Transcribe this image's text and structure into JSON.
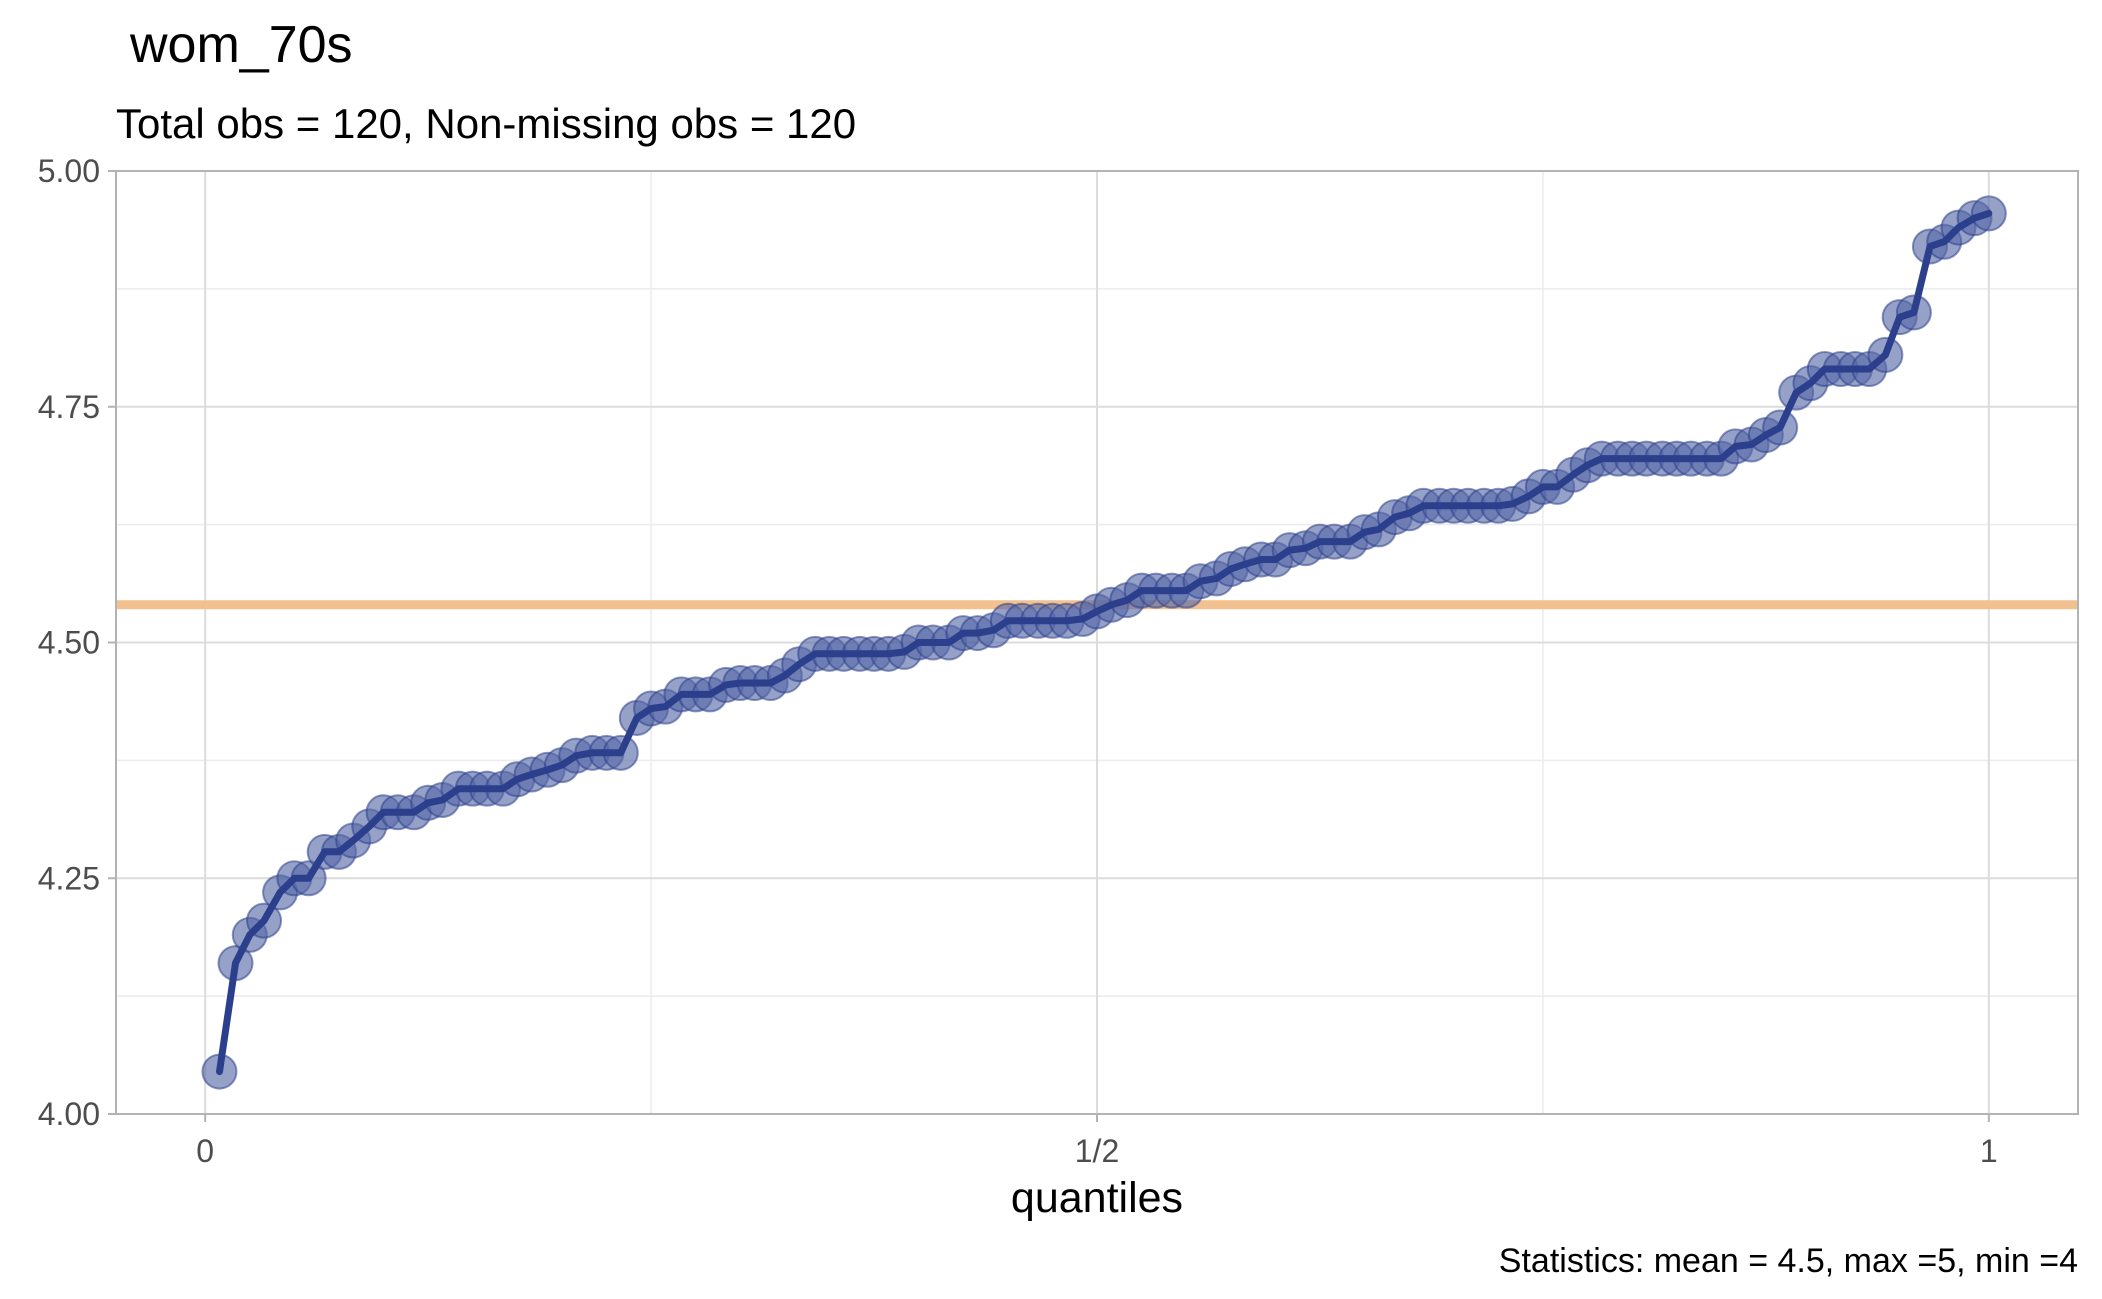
{
  "chart_data": {
    "type": "line",
    "title": "wom_70s",
    "subtitle": "Total obs = 120,  Non-missing obs = 120",
    "xlabel": "quantiles",
    "ylabel": "",
    "caption": "Statistics: mean = 4.5, max =5, min =4",
    "xlim": [
      -0.05,
      1.05
    ],
    "ylim": [
      4.0,
      5.0
    ],
    "x_ticks": [
      0,
      0.5,
      1
    ],
    "x_tick_labels": [
      "0",
      "1/2",
      "1"
    ],
    "y_ticks": [
      4.0,
      4.25,
      4.5,
      4.75,
      5.0
    ],
    "y_tick_labels": [
      "4.00",
      "4.25",
      "4.50",
      "4.75",
      "5.00"
    ],
    "grid": true,
    "reference_line": {
      "y": 4.54,
      "color": "#f3c08f"
    },
    "colors": {
      "line": "#2b3f8c",
      "points": "#5567a6",
      "reference": "#f3c08f"
    },
    "series": [
      {
        "x": [
          0.008,
          0.017,
          0.025,
          0.033,
          0.042,
          0.05,
          0.058,
          0.067,
          0.075,
          0.083,
          0.092,
          0.1,
          0.108,
          0.117,
          0.125,
          0.133,
          0.142,
          0.15,
          0.158,
          0.167,
          0.175,
          0.183,
          0.192,
          0.2,
          0.208,
          0.217,
          0.225,
          0.233,
          0.242,
          0.25,
          0.258,
          0.267,
          0.275,
          0.283,
          0.292,
          0.3,
          0.308,
          0.317,
          0.325,
          0.333,
          0.342,
          0.35,
          0.358,
          0.367,
          0.375,
          0.383,
          0.392,
          0.4,
          0.408,
          0.417,
          0.425,
          0.433,
          0.442,
          0.45,
          0.458,
          0.467,
          0.475,
          0.483,
          0.492,
          0.5,
          0.508,
          0.517,
          0.525,
          0.533,
          0.542,
          0.55,
          0.558,
          0.567,
          0.575,
          0.583,
          0.592,
          0.6,
          0.608,
          0.617,
          0.625,
          0.633,
          0.642,
          0.65,
          0.658,
          0.667,
          0.675,
          0.683,
          0.692,
          0.7,
          0.708,
          0.717,
          0.725,
          0.733,
          0.742,
          0.75,
          0.758,
          0.767,
          0.775,
          0.783,
          0.792,
          0.8,
          0.808,
          0.817,
          0.825,
          0.833,
          0.842,
          0.85,
          0.858,
          0.867,
          0.875,
          0.883,
          0.892,
          0.9,
          0.908,
          0.917,
          0.925,
          0.933,
          0.942,
          0.95,
          0.958,
          0.967,
          0.975,
          0.983,
          0.992,
          1.0
        ],
        "values": [
          4.045,
          4.16,
          4.19,
          4.205,
          4.235,
          4.25,
          4.25,
          4.278,
          4.278,
          4.29,
          4.305,
          4.32,
          4.32,
          4.32,
          4.33,
          4.333,
          4.345,
          4.345,
          4.345,
          4.345,
          4.355,
          4.36,
          4.365,
          4.37,
          4.38,
          4.383,
          4.383,
          4.383,
          4.42,
          4.43,
          4.432,
          4.445,
          4.445,
          4.445,
          4.455,
          4.457,
          4.457,
          4.457,
          4.465,
          4.477,
          4.488,
          4.488,
          4.488,
          4.488,
          4.488,
          4.488,
          4.49,
          4.5,
          4.5,
          4.5,
          4.51,
          4.51,
          4.513,
          4.523,
          4.523,
          4.523,
          4.523,
          4.523,
          4.525,
          4.533,
          4.54,
          4.545,
          4.555,
          4.555,
          4.555,
          4.555,
          4.565,
          4.568,
          4.578,
          4.583,
          4.588,
          4.588,
          4.598,
          4.6,
          4.607,
          4.607,
          4.607,
          4.617,
          4.62,
          4.633,
          4.637,
          4.645,
          4.645,
          4.645,
          4.645,
          4.645,
          4.645,
          4.647,
          4.655,
          4.665,
          4.665,
          4.678,
          4.688,
          4.695,
          4.695,
          4.695,
          4.695,
          4.695,
          4.695,
          4.695,
          4.695,
          4.695,
          4.708,
          4.71,
          4.72,
          4.728,
          4.765,
          4.775,
          4.79,
          4.79,
          4.79,
          4.79,
          4.805,
          4.845,
          4.85,
          4.92,
          4.925,
          4.94,
          4.95,
          4.955
        ]
      }
    ]
  }
}
